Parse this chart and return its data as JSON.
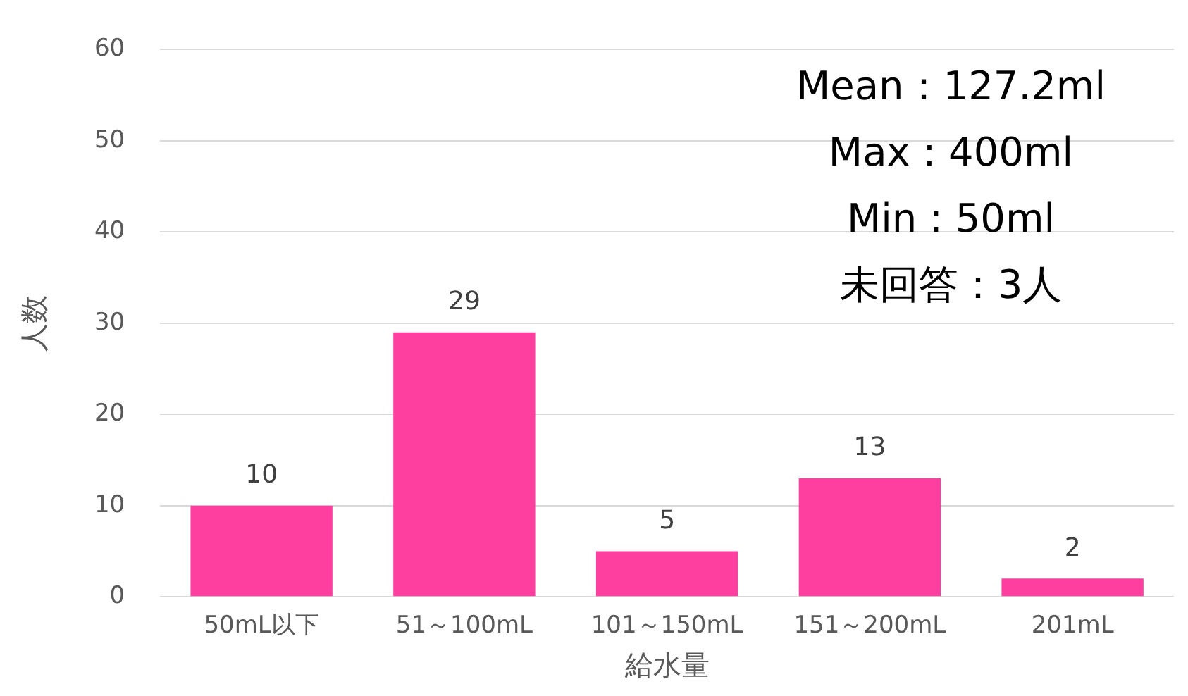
{
  "chart_data": {
    "type": "bar",
    "xlabel": "給水量",
    "ylabel": "人数",
    "categories": [
      "50mL以下",
      "51～100mL",
      "101～150mL",
      "151～200mL",
      "201mL"
    ],
    "values": [
      10,
      29,
      5,
      13,
      2
    ],
    "color": "#ff3fa0",
    "ylim": [
      0,
      60
    ],
    "yticks": [
      0,
      10,
      20,
      30,
      40,
      50,
      60
    ],
    "grid": "y",
    "legend": false,
    "data_labels": true,
    "annotations": [
      "Mean：127.2ml",
      "Max : 400ml",
      "Min : 50ml",
      "未回答：3人"
    ]
  }
}
